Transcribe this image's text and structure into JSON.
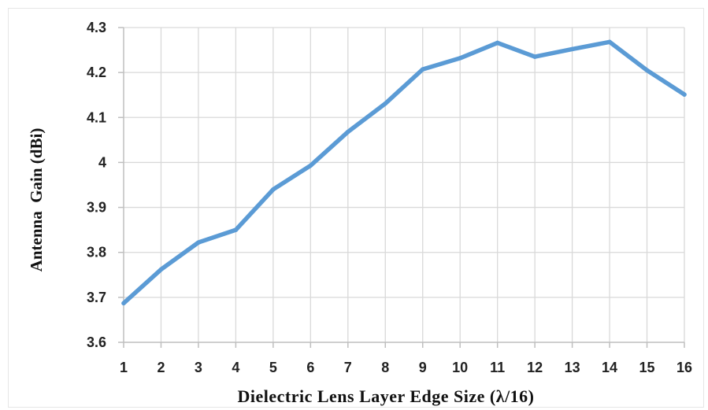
{
  "chart_data": {
    "type": "line",
    "title": "",
    "xlabel": "Dielectric Lens Layer Edge Size (λ/16)",
    "ylabel": "Antenna  Gain (dBi)",
    "x": [
      1,
      2,
      3,
      4,
      5,
      6,
      7,
      8,
      9,
      10,
      11,
      12,
      13,
      14,
      15,
      16
    ],
    "xticks": [
      "1",
      "2",
      "3",
      "4",
      "5",
      "6",
      "7",
      "8",
      "9",
      "10",
      "11",
      "12",
      "13",
      "14",
      "15",
      "16"
    ],
    "yticks": [
      "3.6",
      "3.7",
      "3.8",
      "3.9",
      "4",
      "4.1",
      "4.2",
      "4.3"
    ],
    "ylim": [
      3.6,
      4.3
    ],
    "xlim": [
      1,
      16
    ],
    "grid": true,
    "legend": "none",
    "series": [
      {
        "values": [
          3.687,
          3.762,
          3.822,
          3.85,
          3.94,
          3.993,
          4.068,
          4.131,
          4.207,
          4.232,
          4.266,
          4.235,
          4.252,
          4.268,
          4.205,
          4.151
        ],
        "color": "#5b9bd5"
      }
    ]
  }
}
